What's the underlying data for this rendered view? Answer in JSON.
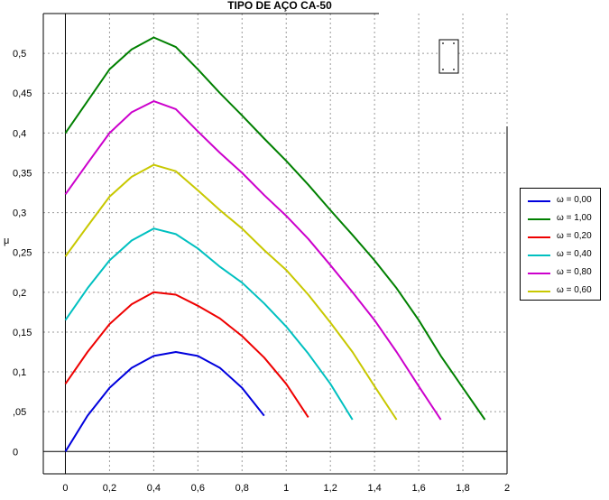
{
  "chart_data": {
    "type": "line",
    "title": "TIPO DE AÇO  CA-50",
    "xlabel": "",
    "ylabel": "μ",
    "xlim": [
      -0.1,
      2.0
    ],
    "ylim": [
      -0.028,
      0.55
    ],
    "xticks": [
      0,
      0.2,
      0.4,
      0.6,
      0.8,
      1,
      1.2,
      1.4,
      1.6,
      1.8,
      2
    ],
    "xtick_labels": [
      "0",
      "0,2",
      "0,4",
      "0,6",
      "0,8",
      "1",
      "1,2",
      "1,4",
      "1,6",
      "1,8",
      "2"
    ],
    "yticks": [
      0,
      0.05,
      0.1,
      0.15,
      0.2,
      0.25,
      0.3,
      0.35,
      0.4,
      0.45,
      0.5
    ],
    "ytick_labels": [
      "0",
      ",05",
      "0,1",
      "0,15",
      "0,2",
      "0,25",
      "0,3",
      "0,35",
      "0,4",
      "0,45",
      "0,5"
    ],
    "grid": true,
    "legend_position": "right",
    "series": [
      {
        "name": "ω = 0,00",
        "color": "#0000dd",
        "x": [
          0,
          0.1,
          0.2,
          0.3,
          0.4,
          0.5,
          0.6,
          0.7,
          0.8,
          0.9
        ],
        "y": [
          0,
          0.045,
          0.08,
          0.105,
          0.12,
          0.125,
          0.12,
          0.105,
          0.08,
          0.045
        ]
      },
      {
        "name": "ω = 1,00",
        "color": "#008000",
        "x": [
          0,
          0.1,
          0.2,
          0.3,
          0.4,
          0.5,
          0.6,
          0.7,
          0.8,
          0.9,
          1.0,
          1.1,
          1.2,
          1.3,
          1.4,
          1.5,
          1.6,
          1.7,
          1.8,
          1.9
        ],
        "y": [
          0.4,
          0.44,
          0.48,
          0.505,
          0.52,
          0.508,
          0.48,
          0.45,
          0.422,
          0.393,
          0.365,
          0.335,
          0.303,
          0.272,
          0.24,
          0.205,
          0.165,
          0.12,
          0.08,
          0.04
        ]
      },
      {
        "name": "ω = 0,20",
        "color": "#ee0000",
        "x": [
          0,
          0.1,
          0.2,
          0.3,
          0.4,
          0.5,
          0.6,
          0.7,
          0.8,
          0.9,
          1.0,
          1.1
        ],
        "y": [
          0.085,
          0.125,
          0.16,
          0.185,
          0.2,
          0.197,
          0.183,
          0.167,
          0.145,
          0.118,
          0.085,
          0.043
        ]
      },
      {
        "name": "ω = 0,40",
        "color": "#00c0c0",
        "x": [
          0,
          0.1,
          0.2,
          0.3,
          0.4,
          0.5,
          0.6,
          0.7,
          0.8,
          0.9,
          1.0,
          1.1,
          1.2,
          1.3
        ],
        "y": [
          0.165,
          0.205,
          0.24,
          0.265,
          0.28,
          0.273,
          0.255,
          0.232,
          0.212,
          0.186,
          0.157,
          0.123,
          0.085,
          0.04
        ]
      },
      {
        "name": "ω = 0,80",
        "color": "#cc00cc",
        "x": [
          0,
          0.1,
          0.2,
          0.3,
          0.4,
          0.5,
          0.6,
          0.7,
          0.8,
          0.9,
          1.0,
          1.1,
          1.2,
          1.3,
          1.4,
          1.5,
          1.6,
          1.7
        ],
        "y": [
          0.323,
          0.362,
          0.4,
          0.426,
          0.44,
          0.43,
          0.402,
          0.375,
          0.35,
          0.322,
          0.296,
          0.267,
          0.234,
          0.2,
          0.165,
          0.125,
          0.082,
          0.04
        ]
      },
      {
        "name": "ω = 0,60",
        "color": "#c8c800",
        "x": [
          0,
          0.1,
          0.2,
          0.3,
          0.4,
          0.5,
          0.6,
          0.7,
          0.8,
          0.9,
          1.0,
          1.1,
          1.2,
          1.3,
          1.4,
          1.5
        ],
        "y": [
          0.245,
          0.283,
          0.32,
          0.345,
          0.36,
          0.352,
          0.328,
          0.303,
          0.28,
          0.253,
          0.228,
          0.197,
          0.162,
          0.125,
          0.082,
          0.04
        ]
      }
    ]
  }
}
